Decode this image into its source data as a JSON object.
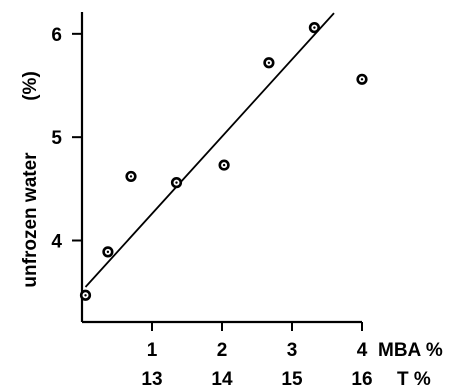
{
  "chart_data": {
    "type": "scatter",
    "title": "",
    "ylabel": "unfrozen water",
    "ylabel_unit": "(%)",
    "xlabel_primary": "MBA %",
    "xlabel_secondary": "T %",
    "xlim": [
      0,
      4.5
    ],
    "ylim": [
      3.25,
      6.25
    ],
    "x_ticks": [
      1,
      2,
      3,
      4
    ],
    "x_tick_labels": [
      "1",
      "2",
      "3",
      "4"
    ],
    "x_secondary_tick_labels": [
      "13",
      "14",
      "15",
      "16"
    ],
    "y_ticks": [
      4,
      5,
      6
    ],
    "y_tick_labels": [
      "4",
      "5",
      "6"
    ],
    "grid": false,
    "points": [
      {
        "x": 0.05,
        "y": 3.47
      },
      {
        "x": 0.37,
        "y": 3.89
      },
      {
        "x": 0.7,
        "y": 4.62
      },
      {
        "x": 1.35,
        "y": 4.56
      },
      {
        "x": 2.03,
        "y": 4.73
      },
      {
        "x": 2.67,
        "y": 5.72
      },
      {
        "x": 3.32,
        "y": 6.06
      },
      {
        "x": 4.0,
        "y": 5.56
      }
    ],
    "fit_line": {
      "x": [
        0.05,
        3.6
      ],
      "y": [
        3.55,
        6.2
      ]
    }
  }
}
